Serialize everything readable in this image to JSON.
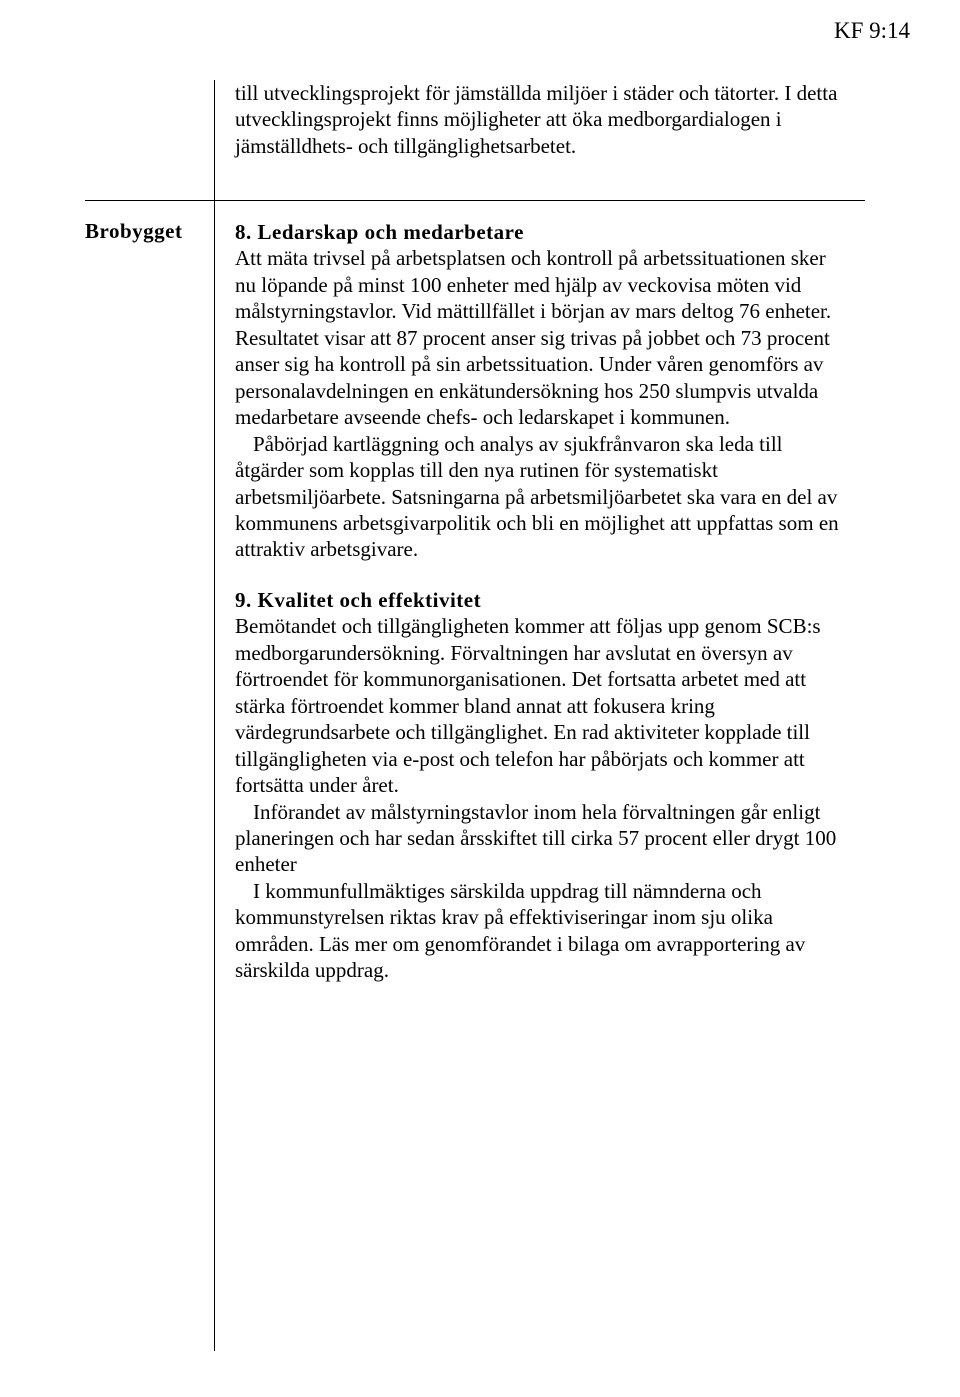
{
  "header": {
    "page_ref": "KF 9:14"
  },
  "top_row": {
    "text": "till utvecklingsprojekt för jämställda miljöer i städer och tätorter. I detta utvecklingsprojekt finns möjligheter att öka medborgardialogen i jämställdhets- och tillgänglighetsarbetet."
  },
  "main_row": {
    "label": "Brobygget",
    "section8": {
      "heading": "8. Ledarskap och medarbetare",
      "p1": "Att mäta trivsel på arbetsplatsen och kontroll på arbetssituationen sker nu löpande på minst 100 enheter med hjälp av veckovisa möten vid målstyrningstavlor. Vid mättillfället i början av mars deltog 76 enheter. Resultatet visar att 87 procent anser sig trivas på jobbet och 73 procent anser sig ha kontroll på sin arbetssituation. Under våren genomförs av personalavdelningen en enkätundersökning hos 250 slumpvis utvalda medarbetare avseende chefs- och ledarskapet i kommunen.",
      "p2": "Påbörjad kartläggning och analys av sjukfrånvaron ska leda till åtgärder som kopplas till den nya rutinen för systematiskt arbetsmiljöarbete. Satsningarna på arbetsmiljöarbetet ska vara en del av kommunens arbetsgivarpolitik och bli en möjlighet att uppfattas som en attraktiv arbetsgivare."
    },
    "section9": {
      "heading": "9. Kvalitet och effektivitet",
      "p1": "Bemötandet och tillgängligheten kommer att följas upp genom SCB:s medborgarundersökning. Förvaltningen har avslutat en översyn av förtroendet för kommunorganisationen. Det fortsatta arbetet med att stärka förtroendet kommer bland annat att fokusera kring värdegrundsarbete och tillgänglighet. En rad aktiviteter kopplade till tillgängligheten via e-post och telefon har påbörjats och kommer att fortsätta under året.",
      "p2": "Införandet av målstyrningstavlor inom hela förvaltningen går enligt planeringen och har sedan årsskiftet till cirka 57 procent eller drygt 100 enheter",
      "p3": "I kommunfullmäktiges särskilda uppdrag till nämnderna och kommunstyrelsen riktas krav på effektiviseringar inom sju olika områden. Läs mer om genomförandet i bilaga om avrapportering av särskilda uppdrag."
    }
  }
}
